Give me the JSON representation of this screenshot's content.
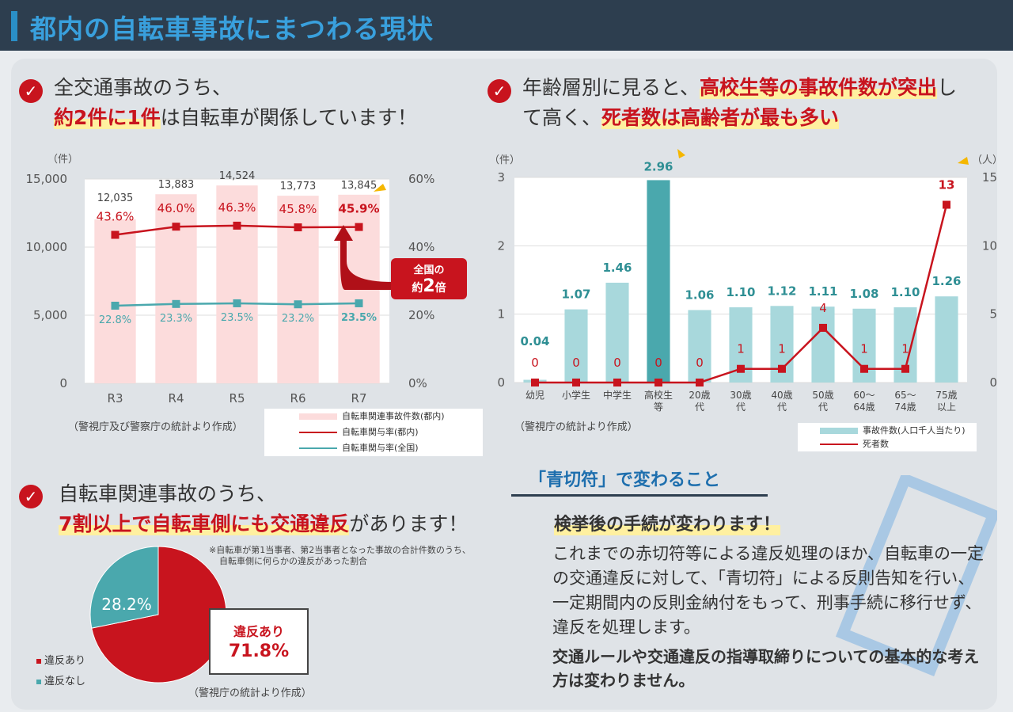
{
  "header": {
    "title": "都内の自転車事故にまつわる現状"
  },
  "sec1": {
    "check": "✓",
    "line1": "全交通事故のうち、",
    "line2_hl": "約2件に1件",
    "line2_rest": "は自転車が関係しています！",
    "source": "（警視庁及び警察庁の統計より作成）",
    "badge_line1": "全国の",
    "badge_prefix": "約",
    "badge_number": "2",
    "badge_suffix": "倍"
  },
  "sec2": {
    "check": "✓",
    "line1_a": "年齢層別に見ると、",
    "line1_hl": "高校生等の事故件数が突出",
    "line1_b": "し",
    "line2_a": "て高く、",
    "line2_hl": "死者数は高齢者が最も多い",
    "source": "（警視庁の統計より作成）"
  },
  "sec3": {
    "check": "✓",
    "line1": "自転車関連事故のうち、",
    "line2_hl": "7割以上で自転車側にも交通違反",
    "line2_rest": "があります！",
    "note1": "※自転車が第1当事者、第2当事者となった事故の合計件数のうち、",
    "note2": "自転車側に何らかの違反があった割合",
    "callout_label": "違反あり",
    "callout_value": "71.8%",
    "source": "（警視庁の統計より作成）"
  },
  "aokippu": {
    "badge": "「青切符」で変わること",
    "subtitle": "検挙後の手続が変わります！",
    "body": "これまでの赤切符等による違反処理のほか、自転車の一定の交通違反に対して、「青切符」による反則告知を行い、一定期間内の反則金納付をもって、刑事手続に移行せず、違反を処理します。",
    "bold": "交通ルールや交通違反の指導取締りについての基本的な考え方は変わりません。"
  },
  "colors": {
    "red": "#c8141e",
    "teal": "#4aa8ad",
    "pink": "#fcdcdc",
    "tealLight": "#a8d8dc",
    "tealDark": "#4aa8ad"
  },
  "chart_data": [
    {
      "type": "bar",
      "categories": [
        "R3",
        "R4",
        "R5",
        "R6",
        "R7"
      ],
      "series": [
        {
          "name": "自転車関連事故件数(都内)",
          "type": "bar",
          "axis": "left",
          "values": [
            12035,
            13883,
            14524,
            13773,
            13845
          ],
          "labels": [
            "12,035",
            "13,883",
            "14,524",
            "13,773",
            "13,845"
          ]
        },
        {
          "name": "自転車関与率(都内)",
          "type": "line",
          "axis": "right",
          "values": [
            43.6,
            46.0,
            46.3,
            45.8,
            45.9
          ],
          "labels": [
            "43.6%",
            "46.0%",
            "46.3%",
            "45.8%",
            "45.9%"
          ]
        },
        {
          "name": "自転車関与率(全国)",
          "type": "line",
          "axis": "right",
          "values": [
            22.8,
            23.3,
            23.5,
            23.2,
            23.5
          ],
          "labels": [
            "22.8%",
            "23.3%",
            "23.5%",
            "23.2%",
            "23.5%"
          ]
        }
      ],
      "ylabel": "（件）",
      "ylim": [
        0,
        15000
      ],
      "yticks": [
        "0",
        "5,000",
        "10,000",
        "15,000"
      ],
      "y2lim": [
        0,
        60
      ],
      "y2ticks": [
        "0%",
        "20%",
        "40%",
        "60%"
      ],
      "grid": true
    },
    {
      "type": "bar",
      "categories": [
        "幼児",
        "小学生",
        "中学生",
        "高校生等",
        "20歳代",
        "30歳代",
        "40歳代",
        "50歳代",
        "60〜64歳",
        "65〜74歳",
        "75歳以上"
      ],
      "category_lines": [
        [
          "幼児"
        ],
        [
          "小学生"
        ],
        [
          "中学生"
        ],
        [
          "高校生",
          "等"
        ],
        [
          "20歳",
          "代"
        ],
        [
          "30歳",
          "代"
        ],
        [
          "40歳",
          "代"
        ],
        [
          "50歳",
          "代"
        ],
        [
          "60～",
          "64歳"
        ],
        [
          "65～",
          "74歳"
        ],
        [
          "75歳",
          "以上"
        ]
      ],
      "series": [
        {
          "name": "事故件数(人口千人当たり)",
          "type": "bar",
          "axis": "left",
          "values": [
            0.04,
            1.07,
            1.46,
            2.96,
            1.06,
            1.1,
            1.12,
            1.11,
            1.08,
            1.1,
            1.26
          ],
          "labels": [
            "0.04",
            "1.07",
            "1.46",
            "2.96",
            "1.06",
            "1.10",
            "1.12",
            "1.11",
            "1.08",
            "1.10",
            "1.26"
          ]
        },
        {
          "name": "死者数",
          "type": "line",
          "axis": "right",
          "values": [
            0,
            0,
            0,
            0,
            0,
            1,
            1,
            4,
            1,
            1,
            13
          ],
          "labels": [
            "0",
            "0",
            "0",
            "0",
            "0",
            "1",
            "1",
            "4",
            "1",
            "1",
            "13"
          ]
        }
      ],
      "ylabel": "（件）",
      "y2label": "（人）",
      "ylim": [
        0,
        3
      ],
      "yticks": [
        "0",
        "1",
        "2",
        "3"
      ],
      "y2lim": [
        0,
        15
      ],
      "y2ticks": [
        "0",
        "5",
        "10",
        "15"
      ],
      "grid": true
    },
    {
      "type": "pie",
      "series": [
        {
          "name": "違反あり",
          "value": 71.8,
          "label": "71.8%"
        },
        {
          "name": "違反なし",
          "value": 28.2,
          "label": "28.2%"
        }
      ]
    }
  ]
}
